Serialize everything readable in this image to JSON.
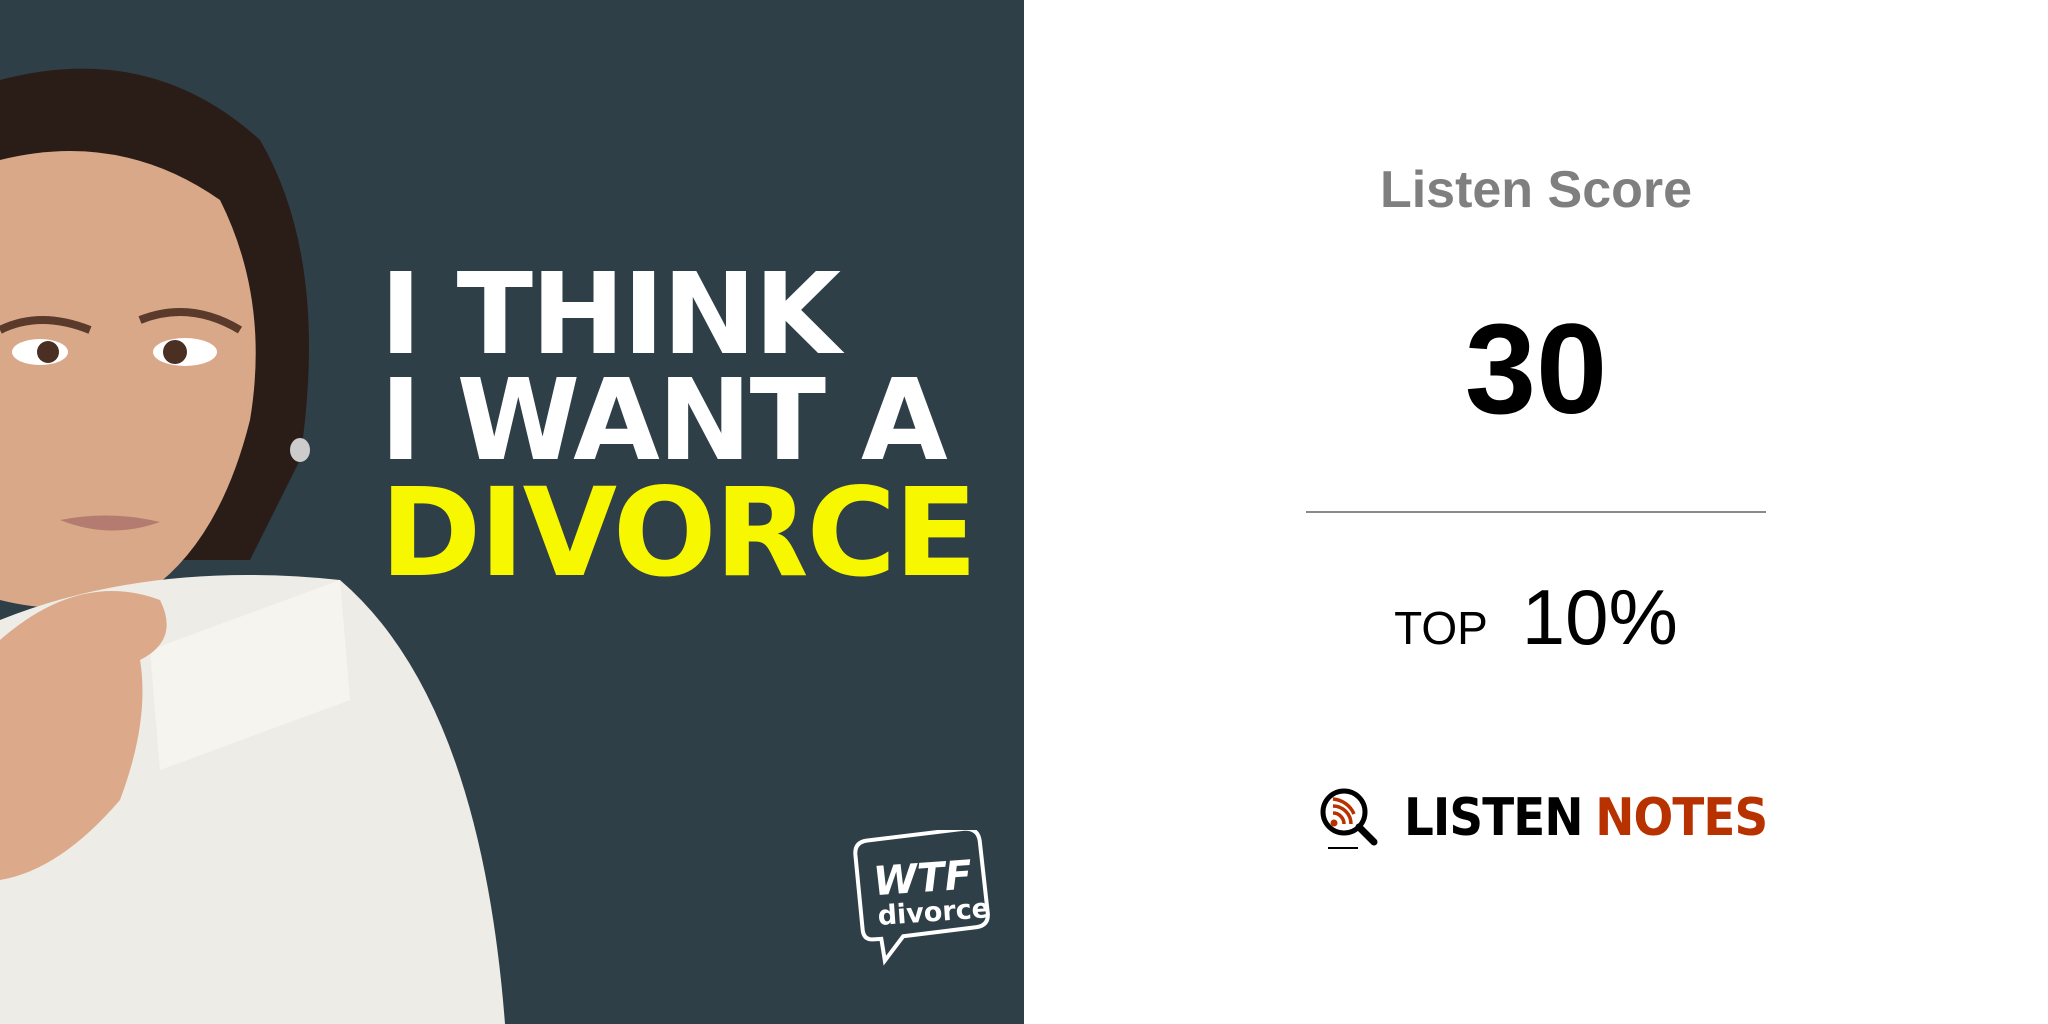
{
  "cover": {
    "headline": [
      "I THINK",
      "I WANT A",
      "DIVORCE"
    ],
    "logo_text": "WTF divorce",
    "background_color": "#2f3f48",
    "highlight_color": "#f7f700"
  },
  "score_card": {
    "title": "Listen Score",
    "score": "30",
    "rank_prefix": "TOP",
    "rank_value": "10%"
  },
  "brand": {
    "icon": "magnifier-podcast-icon",
    "word1": "LISTEN",
    "word2": "NOTES",
    "accent_color": "#b83200"
  }
}
